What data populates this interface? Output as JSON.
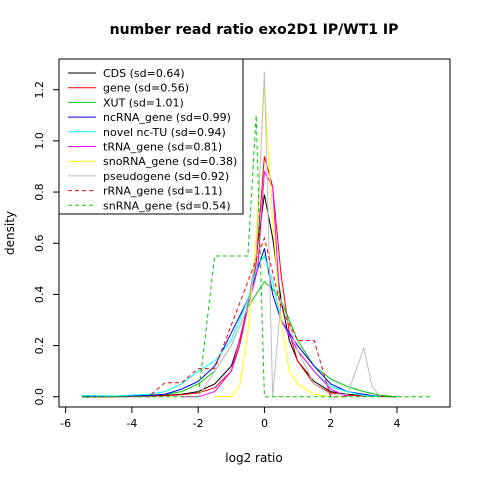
{
  "chart_data": {
    "type": "line",
    "title": "number read ratio exo2D1 IP/WT1 IP",
    "xlabel": "log2 ratio",
    "ylabel": "density",
    "xlim": [
      -6.2,
      5.6
    ],
    "ylim": [
      -0.04,
      1.32
    ],
    "xticks": [
      -6,
      -4,
      -2,
      0,
      2,
      4
    ],
    "yticks": [
      0.0,
      0.2,
      0.4,
      0.6,
      0.8,
      1.0,
      1.2
    ],
    "grid": false,
    "legend_position": "top-left",
    "series": [
      {
        "name": "CDS (sd=0.64)",
        "color": "#000000",
        "dash": "solid",
        "x": [
          -5.5,
          -4.5,
          -4,
          -3.5,
          -3,
          -2.5,
          -2,
          -1.5,
          -1,
          -0.75,
          -0.5,
          -0.25,
          0,
          0.25,
          0.5,
          0.75,
          1,
          1.5,
          2,
          2.5,
          3,
          3.5,
          4
        ],
        "y": [
          0,
          0,
          0.003,
          0.004,
          0.006,
          0.01,
          0.02,
          0.05,
          0.12,
          0.22,
          0.36,
          0.55,
          0.79,
          0.62,
          0.38,
          0.22,
          0.14,
          0.06,
          0.02,
          0.01,
          0.004,
          0.002,
          0
        ]
      },
      {
        "name": "gene (sd=0.56)",
        "color": "#ff0000",
        "dash": "solid",
        "x": [
          -5.5,
          -4.5,
          -3.5,
          -3,
          -2.5,
          -2,
          -1.5,
          -1,
          -0.75,
          -0.5,
          -0.25,
          0,
          0.25,
          0.5,
          0.75,
          1,
          1.5,
          2,
          2.5,
          3,
          3.5,
          4
        ],
        "y": [
          0,
          0,
          0.002,
          0.004,
          0.008,
          0.015,
          0.035,
          0.1,
          0.2,
          0.35,
          0.52,
          0.94,
          0.82,
          0.48,
          0.25,
          0.14,
          0.05,
          0.015,
          0.006,
          0.003,
          0.001,
          0
        ]
      },
      {
        "name": "XUT (sd=1.01)",
        "color": "#00cc00",
        "dash": "solid",
        "x": [
          -5.5,
          -4.5,
          -4,
          -3.5,
          -3,
          -2.5,
          -2,
          -1.5,
          -1,
          -0.5,
          0,
          0.25,
          0.5,
          0.75,
          1,
          1.5,
          2,
          2.5,
          3,
          3.5,
          4
        ],
        "y": [
          0,
          0.001,
          0.003,
          0.006,
          0.01,
          0.02,
          0.05,
          0.1,
          0.2,
          0.35,
          0.45,
          0.42,
          0.38,
          0.3,
          0.22,
          0.12,
          0.07,
          0.04,
          0.02,
          0.006,
          0
        ]
      },
      {
        "name": "ncRNA_gene (sd=0.99)",
        "color": "#0000ff",
        "dash": "solid",
        "x": [
          -5.5,
          -4.5,
          -3.5,
          -3,
          -2.5,
          -2,
          -1.5,
          -1,
          -0.5,
          -0.2,
          0,
          0.25,
          0.5,
          1,
          1.5,
          2,
          2.5,
          3,
          3.5
        ],
        "y": [
          0,
          0.002,
          0.005,
          0.01,
          0.03,
          0.06,
          0.12,
          0.25,
          0.38,
          0.5,
          0.58,
          0.4,
          0.3,
          0.2,
          0.12,
          0.05,
          0.02,
          0.01,
          0
        ]
      },
      {
        "name": "novel nc-TU (sd=0.94)",
        "color": "#00ffff",
        "dash": "solid",
        "x": [
          -5.5,
          -4.5,
          -3.5,
          -3,
          -2.5,
          -2,
          -1.5,
          -1,
          -0.5,
          -0.2,
          0,
          0.25,
          0.5,
          1,
          1.5,
          2,
          2.5,
          3,
          3.5
        ],
        "y": [
          0.005,
          0.003,
          0.01,
          0.02,
          0.05,
          0.1,
          0.14,
          0.22,
          0.38,
          0.52,
          0.55,
          0.45,
          0.3,
          0.18,
          0.1,
          0.04,
          0.02,
          0.005,
          0
        ]
      },
      {
        "name": "tRNA_gene (sd=0.81)",
        "color": "#ff00ff",
        "dash": "solid",
        "x": [
          -2.5,
          -2,
          -1.5,
          -1,
          -0.5,
          -0.2,
          0,
          0.25,
          0.5,
          1,
          1.5,
          2,
          2.5
        ],
        "y": [
          0,
          0,
          0.02,
          0.1,
          0.35,
          0.5,
          0.88,
          0.82,
          0.3,
          0.18,
          0.1,
          0.03,
          0
        ]
      },
      {
        "name": "snoRNA_gene (sd=0.38)",
        "color": "#ffff00",
        "dash": "solid",
        "x": [
          -1.5,
          -1,
          -0.75,
          -0.5,
          -0.25,
          0,
          0.25,
          0.5,
          0.75,
          1,
          1.5,
          2
        ],
        "y": [
          0,
          0,
          0.04,
          0.25,
          0.62,
          1.21,
          0.68,
          0.3,
          0.1,
          0.05,
          0.01,
          0
        ]
      },
      {
        "name": "pseudogene (sd=0.92)",
        "color": "#bebebe",
        "dash": "solid",
        "x": [
          -2,
          -1.5,
          -1,
          -0.5,
          -0.25,
          0,
          0.25,
          0.5,
          1,
          1.5,
          2,
          2.5,
          2.75,
          3,
          3.25,
          3.5
        ],
        "y": [
          0,
          0.1,
          0.2,
          0.35,
          0.55,
          1.27,
          0,
          0.38,
          0.18,
          0.05,
          0.01,
          0.01,
          0.1,
          0.19,
          0.04,
          0
        ]
      },
      {
        "name": "rRNA_gene (sd=1.11)",
        "color": "#ff0000",
        "dash": "dashed",
        "x": [
          -5.5,
          -4,
          -3.5,
          -3,
          -2.5,
          -2,
          -1.5,
          -1,
          -0.5,
          0,
          0.5,
          1,
          1.5,
          2,
          2.5
        ],
        "y": [
          0,
          0,
          0,
          0.055,
          0.055,
          0.11,
          0.11,
          0.28,
          0.45,
          0.62,
          0.35,
          0.22,
          0.22,
          0,
          0
        ]
      },
      {
        "name": "snRNA_gene (sd=0.54)",
        "color": "#00cc00",
        "dash": "dashed",
        "x": [
          -5.5,
          -2.5,
          -2,
          -1.5,
          -1,
          -0.5,
          -0.25,
          0,
          0.5,
          1,
          2,
          3,
          4,
          5
        ],
        "y": [
          0,
          0,
          0,
          0.55,
          0.55,
          0.55,
          1.1,
          0,
          0,
          0,
          0,
          0,
          0,
          0
        ]
      }
    ]
  }
}
